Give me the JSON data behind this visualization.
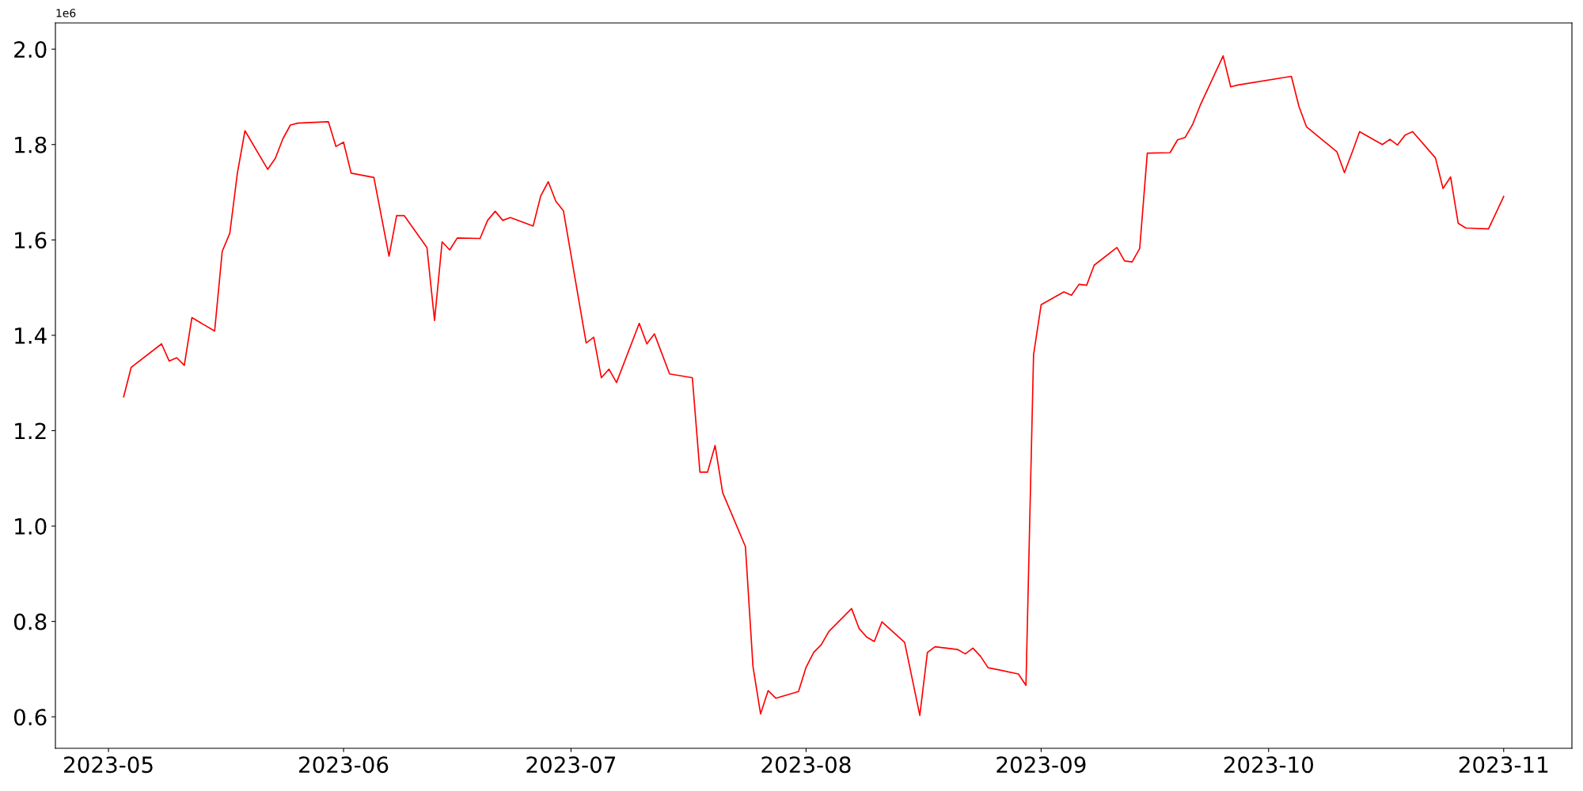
{
  "chart_data": {
    "type": "line",
    "annotations": [
      "1e6"
    ],
    "x": [
      "2023-05-03",
      "2023-05-04",
      "2023-05-08",
      "2023-05-09",
      "2023-05-10",
      "2023-05-11",
      "2023-05-12",
      "2023-05-15",
      "2023-05-16",
      "2023-05-17",
      "2023-05-18",
      "2023-05-19",
      "2023-05-22",
      "2023-05-23",
      "2023-05-24",
      "2023-05-25",
      "2023-05-26",
      "2023-05-30",
      "2023-05-31",
      "2023-06-01",
      "2023-06-02",
      "2023-06-05",
      "2023-06-07",
      "2023-06-08",
      "2023-06-09",
      "2023-06-12",
      "2023-06-13",
      "2023-06-14",
      "2023-06-15",
      "2023-06-16",
      "2023-06-19",
      "2023-06-20",
      "2023-06-21",
      "2023-06-22",
      "2023-06-23",
      "2023-06-26",
      "2023-06-27",
      "2023-06-28",
      "2023-06-29",
      "2023-06-30",
      "2023-07-03",
      "2023-07-04",
      "2023-07-05",
      "2023-07-06",
      "2023-07-07",
      "2023-07-10",
      "2023-07-11",
      "2023-07-12",
      "2023-07-14",
      "2023-07-17",
      "2023-07-18",
      "2023-07-19",
      "2023-07-20",
      "2023-07-21",
      "2023-07-24",
      "2023-07-25",
      "2023-07-26",
      "2023-07-27",
      "2023-07-28",
      "2023-07-31",
      "2023-08-01",
      "2023-08-02",
      "2023-08-03",
      "2023-08-04",
      "2023-08-07",
      "2023-08-08",
      "2023-08-09",
      "2023-08-10",
      "2023-08-11",
      "2023-08-14",
      "2023-08-16",
      "2023-08-17",
      "2023-08-18",
      "2023-08-21",
      "2023-08-22",
      "2023-08-23",
      "2023-08-24",
      "2023-08-25",
      "2023-08-29",
      "2023-08-30",
      "2023-08-31",
      "2023-09-01",
      "2023-09-04",
      "2023-09-05",
      "2023-09-06",
      "2023-09-07",
      "2023-09-08",
      "2023-09-11",
      "2023-09-12",
      "2023-09-13",
      "2023-09-14",
      "2023-09-15",
      "2023-09-18",
      "2023-09-19",
      "2023-09-20",
      "2023-09-21",
      "2023-09-22",
      "2023-09-25",
      "2023-09-26",
      "2023-09-27",
      "2023-10-04",
      "2023-10-05",
      "2023-10-06",
      "2023-10-10",
      "2023-10-11",
      "2023-10-12",
      "2023-10-13",
      "2023-10-16",
      "2023-10-17",
      "2023-10-18",
      "2023-10-19",
      "2023-10-20",
      "2023-10-23",
      "2023-10-24",
      "2023-10-25",
      "2023-10-26",
      "2023-10-27",
      "2023-10-30",
      "2023-11-01"
    ],
    "series": [
      {
        "color": "#ff0000",
        "values": [
          1.271,
          1.333,
          1.382,
          1.346,
          1.353,
          1.337,
          1.437,
          1.409,
          1.576,
          1.614,
          1.74,
          1.829,
          1.748,
          1.771,
          1.812,
          1.841,
          1.845,
          1.848,
          1.796,
          1.805,
          1.74,
          1.731,
          1.566,
          1.651,
          1.651,
          1.584,
          1.431,
          1.596,
          1.579,
          1.604,
          1.603,
          1.641,
          1.66,
          1.641,
          1.647,
          1.629,
          1.692,
          1.722,
          1.681,
          1.661,
          1.384,
          1.396,
          1.311,
          1.329,
          1.301,
          1.425,
          1.382,
          1.403,
          1.319,
          1.311,
          1.113,
          1.113,
          1.169,
          1.07,
          0.957,
          0.705,
          0.606,
          0.655,
          0.639,
          0.653,
          0.704,
          0.735,
          0.751,
          0.779,
          0.827,
          0.785,
          0.767,
          0.758,
          0.799,
          0.756,
          0.603,
          0.735,
          0.747,
          0.741,
          0.732,
          0.744,
          0.727,
          0.703,
          0.69,
          0.666,
          1.359,
          1.464,
          1.491,
          1.484,
          1.507,
          1.505,
          1.547,
          1.584,
          1.556,
          1.554,
          1.582,
          1.782,
          1.783,
          1.81,
          1.815,
          1.843,
          1.883,
          1.986,
          1.921,
          1.925,
          1.943,
          1.88,
          1.837,
          1.785,
          1.741,
          1.783,
          1.827,
          1.8,
          1.811,
          1.799,
          1.82,
          1.827,
          1.772,
          1.708,
          1.732,
          1.635,
          1.625,
          1.623,
          1.691
        ]
      }
    ],
    "xlim": [
      "2023-04-24",
      "2023-11-10"
    ],
    "xticks": [
      "2023-05",
      "2023-06",
      "2023-07",
      "2023-08",
      "2023-09",
      "2023-10",
      "2023-11"
    ],
    "ylim": [
      0.534,
      2.055
    ],
    "yticks": [
      {
        "value": 0.6,
        "label": "0.6"
      },
      {
        "value": 0.8,
        "label": "0.8"
      },
      {
        "value": 1.0,
        "label": "1.0"
      },
      {
        "value": 1.2,
        "label": "1.2"
      },
      {
        "value": 1.4,
        "label": "1.4"
      },
      {
        "value": 1.6,
        "label": "1.6"
      },
      {
        "value": 1.8,
        "label": "1.8"
      },
      {
        "value": 2.0,
        "label": "2.0"
      }
    ],
    "grid": false,
    "marker": "none",
    "line_style": "solid"
  }
}
